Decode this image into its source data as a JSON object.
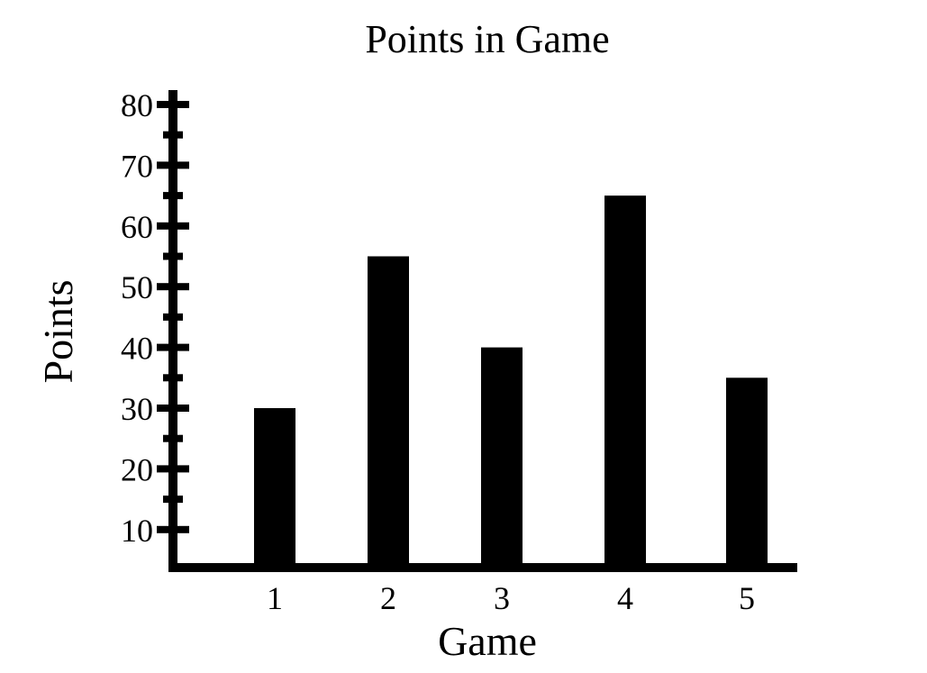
{
  "chart_data": {
    "type": "bar",
    "title": "Points in Game",
    "xlabel": "Game",
    "ylabel": "Points",
    "categories": [
      "1",
      "2",
      "3",
      "4",
      "5"
    ],
    "values": [
      30,
      55,
      40,
      65,
      35
    ],
    "ylim": [
      5,
      80
    ],
    "y_ticks": [
      "10",
      "20",
      "30",
      "40",
      "50",
      "60",
      "70",
      "80"
    ],
    "y_tick_values": [
      10,
      20,
      30,
      40,
      50,
      60,
      70,
      80
    ],
    "y_minor_tick_values": [
      15,
      25,
      35,
      45,
      55,
      65,
      75
    ],
    "grid": false,
    "bar_color": "#000000"
  }
}
